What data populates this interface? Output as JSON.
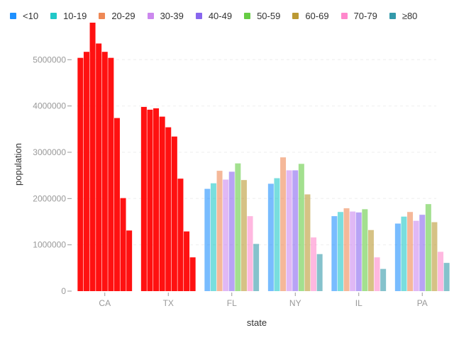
{
  "chart_data": {
    "type": "bar",
    "xlabel": "state",
    "ylabel": "population",
    "ylim": [
      0,
      5800000
    ],
    "yticks": [
      0,
      1000000,
      2000000,
      3000000,
      4000000,
      5000000
    ],
    "ytick_labels": [
      "0",
      "1000000",
      "2000000",
      "3000000",
      "4000000",
      "5000000"
    ],
    "grid": true,
    "legend_position": "top-left",
    "categories": [
      "CA",
      "TX",
      "FL",
      "NY",
      "IL",
      "PA"
    ],
    "highlight_color": "#ff1111",
    "highlighted_categories": [
      "CA",
      "TX"
    ],
    "series": [
      {
        "name": "<10",
        "color": "#1e90ff",
        "values": [
          5040000,
          3980000,
          2210000,
          2320000,
          1620000,
          1460000
        ]
      },
      {
        "name": "10-19",
        "color": "#20c8c8",
        "values": [
          5170000,
          3920000,
          2330000,
          2440000,
          1710000,
          1610000
        ]
      },
      {
        "name": "20-29",
        "color": "#ee8855",
        "values": [
          5800000,
          3950000,
          2600000,
          2890000,
          1790000,
          1710000
        ]
      },
      {
        "name": "30-39",
        "color": "#cc88ee",
        "values": [
          5350000,
          3770000,
          2410000,
          2610000,
          1720000,
          1520000
        ]
      },
      {
        "name": "40-49",
        "color": "#8866ee",
        "values": [
          5170000,
          3540000,
          2580000,
          2610000,
          1700000,
          1650000
        ]
      },
      {
        "name": "50-59",
        "color": "#66cc44",
        "values": [
          5040000,
          3340000,
          2760000,
          2750000,
          1770000,
          1880000
        ]
      },
      {
        "name": "60-69",
        "color": "#bb9933",
        "values": [
          3740000,
          2430000,
          2400000,
          2090000,
          1320000,
          1490000
        ]
      },
      {
        "name": "70-79",
        "color": "#ff88cc",
        "values": [
          2010000,
          1290000,
          1620000,
          1160000,
          730000,
          850000
        ]
      },
      {
        "name": "≥80",
        "color": "#3399aa",
        "values": [
          1310000,
          730000,
          1020000,
          800000,
          480000,
          610000
        ]
      }
    ]
  }
}
